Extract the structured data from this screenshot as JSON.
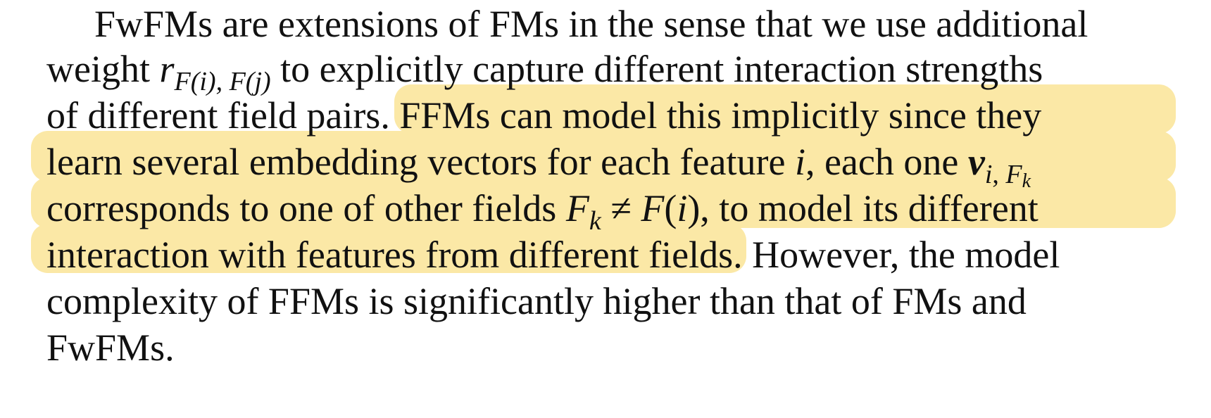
{
  "paragraph": {
    "line1": "FwFMs are extensions of FMs in the sense that we use additional",
    "line2_pre": "weight",
    "line2_r": "r",
    "line2_sub": "F(i), F(j)",
    "line2_post": "to explicitly capture different interaction strengths",
    "line3_pre": "of different field pairs.",
    "line3_hl": "FFMs can model this implicitly since they",
    "line4_pre": "learn several embedding vectors for each feature",
    "line4_i": "i",
    "line4_mid": ", each one",
    "line4_v": "v",
    "line4_vsub_i": "i",
    "line4_vsub_F": "F",
    "line4_vsub_k": "k",
    "line5_pre": "corresponds to one of other fields",
    "line5_F": "F",
    "line5_k": "k",
    "line5_neq": "≠",
    "line5_Fi": "F",
    "line5_paren_open": "(",
    "line5_i": "i",
    "line5_post": "), to model its different",
    "line6_hl": "interaction with features from different fields.",
    "line6_post": "However, the model",
    "line7": "complexity of FFMs is significantly higher than that of FMs and",
    "line8": "FwFMs."
  },
  "highlight_color": "#fbe8a6"
}
